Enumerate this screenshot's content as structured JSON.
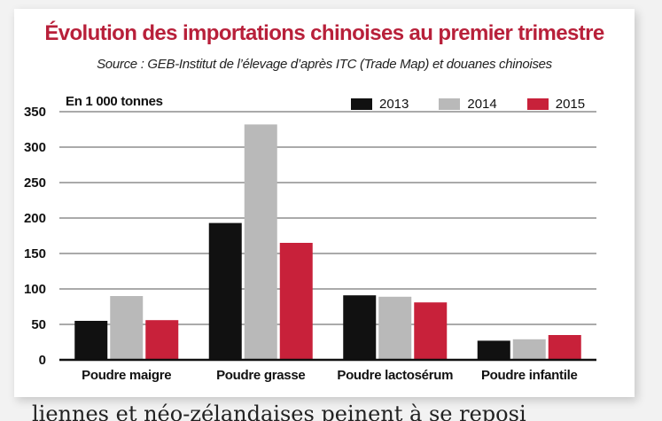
{
  "colors": {
    "title": "#b8203a",
    "s2013": "#111111",
    "s2014": "#b9b9b9",
    "s2015": "#c8213a",
    "grid": "#555555"
  },
  "chart_data": {
    "type": "bar",
    "title": "Évolution des importations chinoises au premier trimestre",
    "subtitle": "Source : GEB-Institut de l’élevage d’après ITC (Trade Map) et douanes chinoises",
    "ylabel": "En 1 000 tonnes",
    "xlabel": "",
    "ylim": [
      0,
      350
    ],
    "yticks": [
      "0",
      "50",
      "100",
      "150",
      "200",
      "250",
      "300",
      "350"
    ],
    "grid": true,
    "legend_position": "top-right",
    "categories": [
      "Poudre maigre",
      "Poudre grasse",
      "Poudre lactosérum",
      "Poudre infantile"
    ],
    "series": [
      {
        "name": "2013",
        "color": "#111111",
        "values": [
          55,
          193,
          91,
          27
        ]
      },
      {
        "name": "2014",
        "color": "#b9b9b9",
        "values": [
          90,
          332,
          89,
          29
        ]
      },
      {
        "name": "2015",
        "color": "#c8213a",
        "values": [
          56,
          165,
          81,
          35
        ]
      }
    ]
  },
  "page_text": {
    "bottom_fragment": "liennes et néo-zélandaises peinent à se reposi"
  }
}
